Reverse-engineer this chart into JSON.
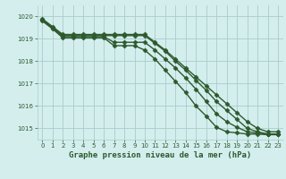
{
  "bg_color": "#d4eeee",
  "grid_color": "#aacccc",
  "line_color": "#2d5a2d",
  "xlabel": "Graphe pression niveau de la mer (hPa)",
  "ylim": [
    1014.5,
    1020.5
  ],
  "xlim": [
    -0.5,
    23.5
  ],
  "yticks": [
    1015,
    1016,
    1017,
    1018,
    1019,
    1020
  ],
  "xticks": [
    0,
    1,
    2,
    3,
    4,
    5,
    6,
    7,
    8,
    9,
    10,
    11,
    12,
    13,
    14,
    15,
    16,
    17,
    18,
    19,
    20,
    21,
    22,
    23
  ],
  "series": [
    {
      "x": [
        0,
        1,
        2,
        3,
        4,
        5,
        6,
        7,
        8,
        9,
        10,
        11,
        12,
        13,
        14,
        15,
        16,
        17,
        18,
        19,
        20,
        21,
        22,
        23
      ],
      "y": [
        1019.9,
        1019.55,
        1019.2,
        1019.2,
        1019.2,
        1019.2,
        1019.2,
        1019.2,
        1019.2,
        1019.2,
        1019.2,
        1018.85,
        1018.5,
        1018.1,
        1017.7,
        1017.3,
        1016.9,
        1016.5,
        1016.1,
        1015.7,
        1015.3,
        1015.0,
        1014.85,
        1014.85
      ],
      "marker": "D",
      "markersize": 2.5,
      "linewidth": 1.0
    },
    {
      "x": [
        0,
        1,
        2,
        3,
        4,
        5,
        6,
        7,
        8,
        9,
        10,
        11,
        12,
        13,
        14,
        15,
        16,
        17,
        18,
        19,
        20,
        21,
        22,
        23
      ],
      "y": [
        1019.85,
        1019.5,
        1019.15,
        1019.15,
        1019.15,
        1019.15,
        1019.15,
        1019.15,
        1019.15,
        1019.15,
        1019.15,
        1018.8,
        1018.45,
        1018.0,
        1017.6,
        1017.15,
        1016.7,
        1016.2,
        1015.8,
        1015.4,
        1015.0,
        1014.85,
        1014.75,
        1014.75
      ],
      "marker": "D",
      "markersize": 2.5,
      "linewidth": 1.0
    },
    {
      "x": [
        0,
        1,
        2,
        3,
        4,
        5,
        6,
        7,
        8,
        9,
        10,
        11,
        12,
        13,
        14,
        15,
        16,
        17,
        18,
        19,
        20,
        21,
        22,
        23
      ],
      "y": [
        1019.85,
        1019.5,
        1019.1,
        1019.1,
        1019.1,
        1019.1,
        1019.1,
        1018.85,
        1018.85,
        1018.85,
        1018.85,
        1018.5,
        1018.1,
        1017.7,
        1017.25,
        1016.75,
        1016.2,
        1015.65,
        1015.3,
        1015.05,
        1014.85,
        1014.8,
        1014.75,
        1014.75
      ],
      "marker": "D",
      "markersize": 2.5,
      "linewidth": 1.0
    },
    {
      "x": [
        0,
        1,
        2,
        3,
        4,
        5,
        6,
        7,
        8,
        9,
        10,
        11,
        12,
        13,
        14,
        15,
        16,
        17,
        18,
        19,
        20,
        21,
        22,
        23
      ],
      "y": [
        1019.8,
        1019.45,
        1019.05,
        1019.05,
        1019.05,
        1019.05,
        1019.05,
        1018.7,
        1018.7,
        1018.7,
        1018.5,
        1018.1,
        1017.6,
        1017.1,
        1016.6,
        1016.0,
        1015.55,
        1015.05,
        1014.85,
        1014.8,
        1014.75,
        1014.75,
        1014.72,
        1014.72
      ],
      "marker": "D",
      "markersize": 2.5,
      "linewidth": 1.0
    }
  ]
}
